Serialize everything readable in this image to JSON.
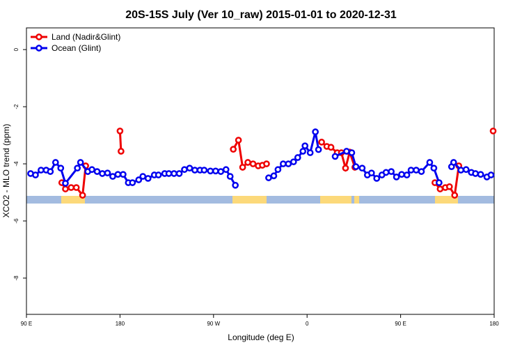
{
  "chart_data": {
    "type": "line",
    "title": "20S-15S July (Ver 10_raw)   2015-01-01 to 2020-12-31",
    "x_label": "Longitude (deg E)",
    "y_label": "XCO2 - MLO trend (ppm)",
    "xlim": [
      90,
      540
    ],
    "ylim": [
      0.76,
      -9.27
    ],
    "xticks": [
      {
        "value": 90,
        "label": "90 E"
      },
      180,
      {
        "value": 270,
        "label": "90 W"
      },
      {
        "value": 360,
        "label": "0"
      },
      {
        "value": 450,
        "label": "90 E"
      },
      {
        "value": 540,
        "label": "180"
      }
    ],
    "yticks": [
      0,
      -2,
      -4,
      -6,
      -8
    ],
    "legend": "top-left",
    "series": [
      {
        "name": "Land (Nadir&Glint)",
        "color": "#ee0000",
        "x": [
          124,
          127.5,
          133,
          138,
          144,
          147,
          148,
          180,
          181,
          182,
          289,
          294,
          298,
          303,
          308,
          313,
          317,
          321,
          322,
          374,
          379,
          383,
          389,
          393,
          397,
          401,
          406,
          407,
          483,
          488,
          493,
          497,
          502,
          506,
          507,
          539
        ],
        "values": [
          -4.66,
          -4.88,
          -4.83,
          -4.83,
          -5.1,
          -4.07,
          null,
          -2.85,
          -3.56,
          null,
          -3.49,
          -3.17,
          -4.12,
          -3.95,
          -4.0,
          -4.07,
          -4.05,
          -4.0,
          null,
          -3.24,
          -3.39,
          -3.42,
          -3.61,
          -3.61,
          -4.15,
          -3.59,
          -4.12,
          null,
          -4.66,
          -4.88,
          -4.83,
          -4.8,
          -5.1,
          -4.07,
          null,
          -2.85
        ]
      },
      {
        "name": "Ocean (Glint)",
        "color": "#0000ee",
        "x": [
          94,
          98.7,
          104,
          109,
          113,
          118,
          123,
          127.5,
          139,
          142,
          149,
          153,
          158,
          163,
          168,
          173,
          178,
          183,
          188,
          192,
          198,
          202,
          207,
          213,
          217,
          223,
          227,
          232,
          237,
          242,
          247,
          252,
          257,
          261,
          267,
          272,
          277,
          282,
          286,
          291,
          292,
          323,
          328,
          332,
          337,
          342,
          347,
          351,
          356,
          358,
          363,
          368,
          371,
          372,
          387,
          398,
          403,
          407,
          413,
          418,
          422,
          427,
          432,
          436,
          441,
          446,
          451,
          456,
          460,
          465,
          470,
          478,
          482,
          487,
          488,
          499,
          501,
          508,
          513,
          518,
          522,
          527,
          533,
          537
        ],
        "values": [
          -4.34,
          -4.39,
          -4.22,
          -4.22,
          -4.27,
          -3.95,
          -4.15,
          -4.68,
          -4.15,
          -3.95,
          -4.27,
          -4.2,
          -4.27,
          -4.34,
          -4.32,
          -4.44,
          -4.37,
          -4.37,
          -4.66,
          -4.66,
          -4.56,
          -4.44,
          -4.51,
          -4.39,
          -4.39,
          -4.34,
          -4.34,
          -4.34,
          -4.34,
          -4.2,
          -4.15,
          -4.22,
          -4.22,
          -4.22,
          -4.25,
          -4.25,
          -4.27,
          -4.2,
          -4.44,
          -4.75,
          null,
          -4.49,
          -4.42,
          -4.2,
          -4.0,
          -4.0,
          -3.93,
          -3.78,
          -3.56,
          -3.37,
          -3.61,
          -2.88,
          -3.5,
          null,
          -3.74,
          -3.56,
          -3.61,
          -4.1,
          -4.15,
          -4.39,
          -4.32,
          -4.51,
          -4.39,
          -4.3,
          -4.27,
          -4.46,
          -4.37,
          -4.39,
          -4.22,
          -4.22,
          -4.27,
          -3.95,
          -4.15,
          -4.66,
          null,
          -4.1,
          -3.95,
          -4.22,
          -4.2,
          -4.3,
          -4.34,
          -4.37,
          -4.46,
          -4.39
        ]
      }
    ]
  }
}
